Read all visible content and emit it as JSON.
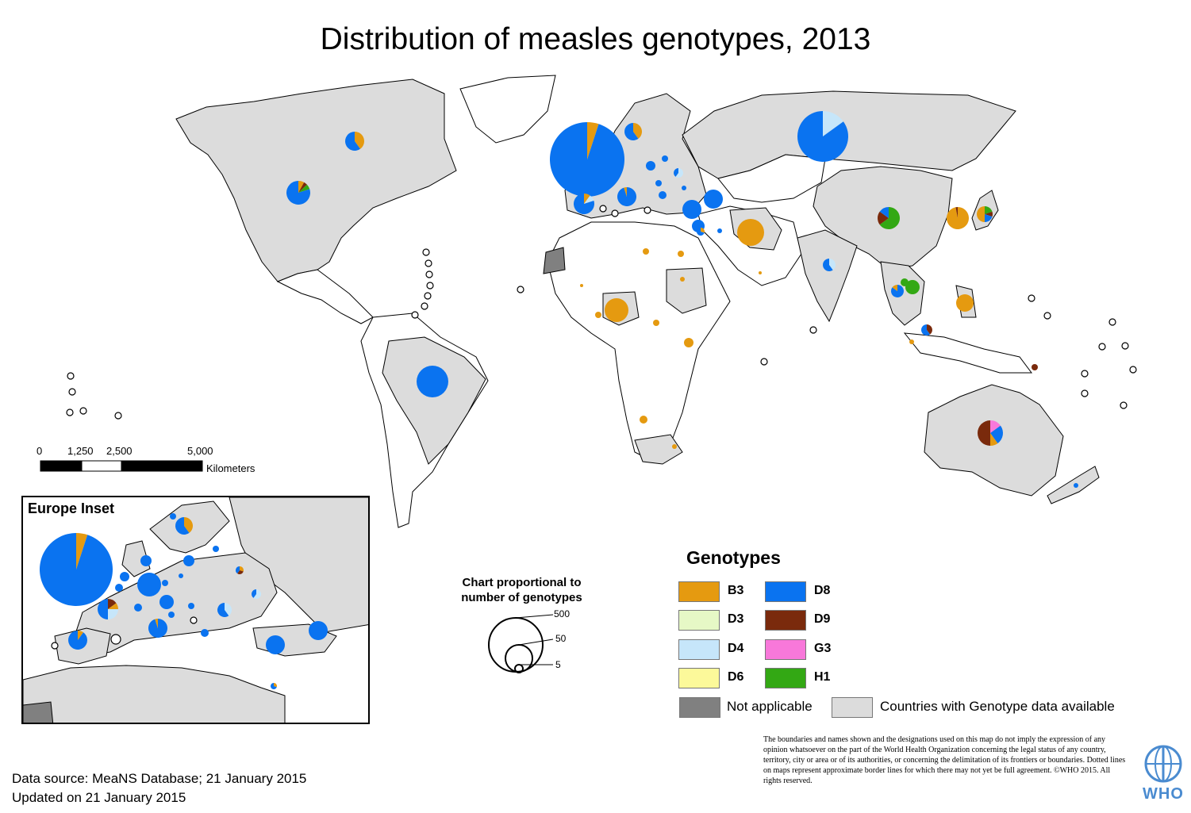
{
  "title": "Distribution of measles genotypes, 2013",
  "colors": {
    "B3": "#E59A10",
    "D3": "#E6F8C6",
    "D4": "#C6E6FA",
    "D6": "#FCF99A",
    "D8": "#0A73F0",
    "D9": "#7A2A0C",
    "G3": "#F878DA",
    "H1": "#33A814",
    "not_applicable": "#808080",
    "data_available": "#DCDCDC",
    "land": "#FFFFFF"
  },
  "scale_bar": {
    "ticks": [
      "0",
      "1,250",
      "2,500",
      "5,000"
    ],
    "unit": "Kilometers"
  },
  "inset": {
    "title": "Europe Inset"
  },
  "proportional_legend": {
    "title": "Chart proportional to number of genotypes",
    "values": [
      "500",
      "50",
      "5"
    ]
  },
  "legend": {
    "title": "Genotypes",
    "items": [
      {
        "key": "B3",
        "label": "B3"
      },
      {
        "key": "D3",
        "label": "D3"
      },
      {
        "key": "D4",
        "label": "D4"
      },
      {
        "key": "D6",
        "label": "D6"
      },
      {
        "key": "D8",
        "label": "D8"
      },
      {
        "key": "D9",
        "label": "D9"
      },
      {
        "key": "G3",
        "label": "G3"
      },
      {
        "key": "H1",
        "label": "H1"
      }
    ],
    "not_applicable": "Not applicable",
    "data_available": "Countries with Genotype data available"
  },
  "disclaimer": "The boundaries and names shown and the designations used on this map do not imply the expression of any opinion whatsoever on the part of the World Health Organization concerning the legal status of any country, territory, city or area or of its authorities, or concerning the delimitation of its frontiers or boundaries.  Dotted lines on maps represent approximate border lines for which there may not yet be full agreement. ©WHO 2015.  All rights reserved.",
  "source": {
    "line1": "Data source: MeaNS Database; 21 January 2015",
    "line2": "Updated on 21 January 2015"
  },
  "logo": {
    "text": "WHO"
  }
}
